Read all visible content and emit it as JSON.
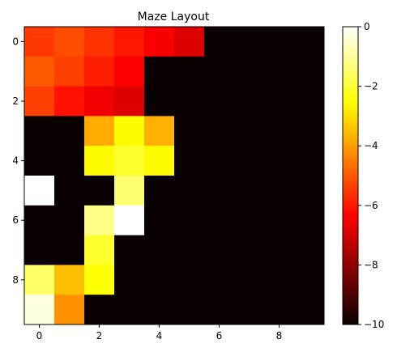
{
  "chart_data": {
    "type": "heatmap",
    "title": "Maze Layout",
    "xlabel": "",
    "ylabel": "",
    "colormap": "hot",
    "vmin": -10,
    "vmax": 0,
    "x_ticks": [
      0,
      2,
      4,
      6,
      8
    ],
    "y_ticks": [
      0,
      2,
      4,
      6,
      8
    ],
    "colorbar_ticks": [
      0,
      -2,
      -4,
      -6,
      -8,
      -10
    ],
    "colorbar_tick_labels": [
      "0",
      "−2",
      "−4",
      "−6",
      "−8",
      "−10"
    ],
    "x_tick_labels": [
      "0",
      "2",
      "4",
      "6",
      "8"
    ],
    "y_tick_labels": [
      "0",
      "2",
      "4",
      "6",
      "8"
    ],
    "grid": false,
    "values": [
      [
        -5.5,
        -5.2,
        -5.6,
        -6.0,
        -6.6,
        -7.0,
        -10,
        -10,
        -10,
        -10
      ],
      [
        -5.0,
        -5.4,
        -5.9,
        -6.4,
        -10,
        -10,
        -10,
        -10,
        -10,
        -10
      ],
      [
        -5.4,
        -6.1,
        -6.7,
        -7.0,
        -10,
        -10,
        -10,
        -10,
        -10,
        -10
      ],
      [
        -10,
        -10,
        -3.8,
        -2.6,
        -3.7,
        -10,
        -10,
        -10,
        -10,
        -10
      ],
      [
        -10,
        -10,
        -2.6,
        -2.1,
        -2.6,
        -10,
        -10,
        -10,
        -10,
        -10
      ],
      [
        0,
        -10,
        -10,
        -1.4,
        -10,
        -10,
        -10,
        -10,
        -10,
        -10
      ],
      [
        -10,
        -10,
        -1.2,
        0,
        -10,
        -10,
        -10,
        -10,
        -10,
        -10
      ],
      [
        -10,
        -10,
        -2.1,
        -10,
        -10,
        -10,
        -10,
        -10,
        -10,
        -10
      ],
      [
        -1.5,
        -3.5,
        -2.5,
        -10,
        -10,
        -10,
        -10,
        -10,
        -10,
        -10
      ],
      [
        -0.3,
        -4.2,
        -10,
        -10,
        -10,
        -10,
        -10,
        -10,
        -10,
        -10
      ]
    ]
  }
}
